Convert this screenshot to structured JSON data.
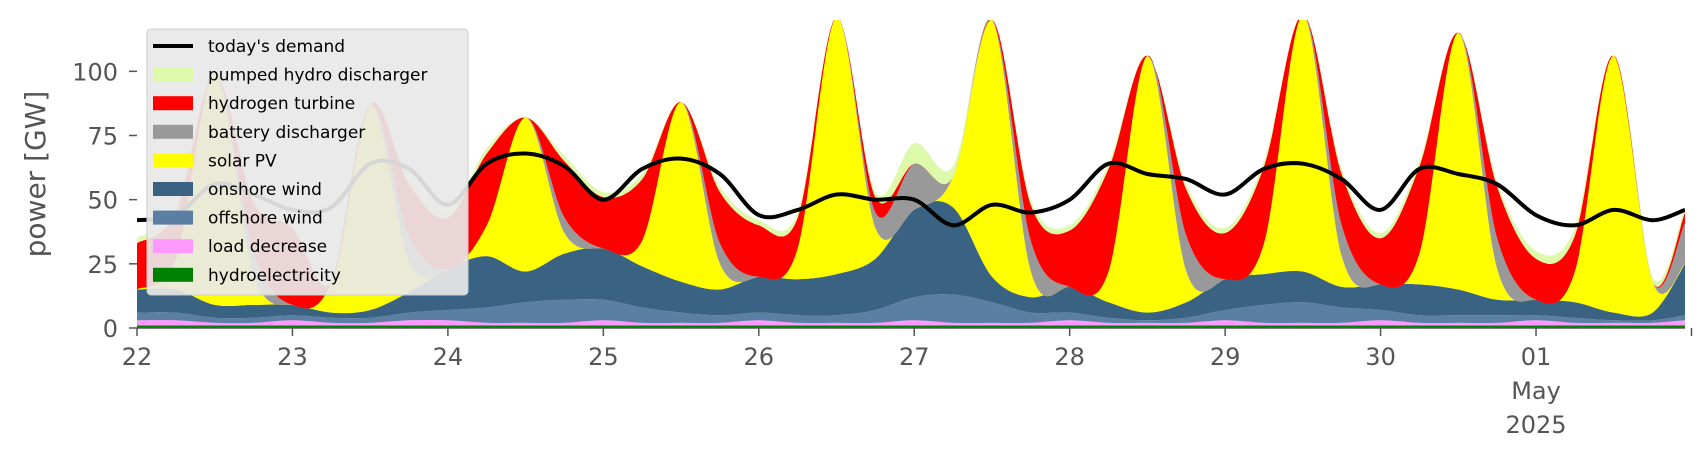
{
  "chart_data": {
    "type": "area",
    "stacked": true,
    "ylabel": "power [GW]",
    "xlabel": "",
    "ylim": [
      0,
      120
    ],
    "yticks": [
      0,
      25,
      50,
      75,
      100
    ],
    "x_tick_labels": [
      "22",
      "23",
      "24",
      "25",
      "26",
      "27",
      "28",
      "29",
      "30",
      "01",
      "May",
      "2025"
    ],
    "x_range": [
      "2025-04-22 00:00",
      "2025-05-01 23:00"
    ],
    "grid": false,
    "legend_placement": "top-left",
    "x": [
      "2025-04-22 00:00",
      "2025-04-22 06:00",
      "2025-04-22 12:00",
      "2025-04-22 18:00",
      "2025-04-23 00:00",
      "2025-04-23 06:00",
      "2025-04-23 12:00",
      "2025-04-23 18:00",
      "2025-04-24 00:00",
      "2025-04-24 06:00",
      "2025-04-24 12:00",
      "2025-04-24 18:00",
      "2025-04-25 00:00",
      "2025-04-25 06:00",
      "2025-04-25 12:00",
      "2025-04-25 18:00",
      "2025-04-26 00:00",
      "2025-04-26 06:00",
      "2025-04-26 12:00",
      "2025-04-26 18:00",
      "2025-04-27 00:00",
      "2025-04-27 06:00",
      "2025-04-27 12:00",
      "2025-04-27 18:00",
      "2025-04-28 00:00",
      "2025-04-28 06:00",
      "2025-04-28 12:00",
      "2025-04-28 18:00",
      "2025-04-29 00:00",
      "2025-04-29 06:00",
      "2025-04-29 12:00",
      "2025-04-29 18:00",
      "2025-04-30 00:00",
      "2025-04-30 06:00",
      "2025-04-30 12:00",
      "2025-04-30 18:00",
      "2025-05-01 00:00",
      "2025-05-01 06:00",
      "2025-05-01 12:00",
      "2025-05-01 18:00",
      "2025-05-01 23:00"
    ],
    "series": [
      {
        "name": "hydroelectricity",
        "color": "#008000",
        "values": [
          1,
          1,
          1,
          1,
          1,
          1,
          1,
          1,
          1,
          1,
          1,
          1,
          1,
          1,
          1,
          1,
          1,
          1,
          1,
          1,
          1,
          1,
          1,
          1,
          1,
          1,
          1,
          1,
          1,
          1,
          1,
          1,
          1,
          1,
          1,
          1,
          1,
          1,
          1,
          1,
          1
        ]
      },
      {
        "name": "load decrease",
        "color": "#ff99ff",
        "values": [
          2,
          2,
          1,
          1,
          2,
          1,
          1,
          2,
          2,
          1,
          1,
          1,
          2,
          1,
          1,
          1,
          2,
          1,
          1,
          1,
          2,
          1,
          1,
          1,
          2,
          1,
          1,
          1,
          2,
          1,
          1,
          1,
          2,
          1,
          1,
          1,
          2,
          1,
          1,
          1,
          2
        ]
      },
      {
        "name": "offshore wind",
        "color": "#5b7fa3",
        "values": [
          3,
          3,
          2,
          2,
          2,
          2,
          2,
          3,
          4,
          6,
          8,
          9,
          8,
          6,
          4,
          3,
          3,
          3,
          3,
          5,
          9,
          11,
          8,
          4,
          3,
          2,
          1,
          2,
          4,
          7,
          8,
          6,
          4,
          3,
          3,
          3,
          2,
          2,
          1,
          1,
          2
        ]
      },
      {
        "name": "onshore wind",
        "color": "#3a6282",
        "values": [
          9,
          9,
          5,
          5,
          4,
          2,
          3,
          8,
          16,
          20,
          12,
          18,
          20,
          16,
          12,
          10,
          14,
          14,
          16,
          20,
          34,
          34,
          10,
          6,
          10,
          6,
          3,
          6,
          12,
          12,
          12,
          8,
          10,
          12,
          10,
          6,
          6,
          6,
          3,
          3,
          20
        ]
      },
      {
        "name": "solar PV",
        "color": "#ffff00",
        "values": [
          0,
          12,
          90,
          12,
          0,
          12,
          80,
          12,
          0,
          12,
          60,
          8,
          0,
          10,
          70,
          10,
          0,
          12,
          100,
          12,
          0,
          12,
          100,
          10,
          0,
          12,
          100,
          12,
          0,
          12,
          100,
          12,
          0,
          12,
          100,
          12,
          0,
          12,
          100,
          12,
          0
        ]
      },
      {
        "name": "battery discharger",
        "color": "#999999",
        "values": [
          0,
          0,
          0,
          8,
          0,
          0,
          0,
          10,
          0,
          0,
          0,
          6,
          0,
          0,
          0,
          8,
          0,
          0,
          0,
          6,
          18,
          0,
          0,
          12,
          0,
          0,
          0,
          14,
          0,
          0,
          0,
          12,
          0,
          0,
          0,
          12,
          0,
          0,
          0,
          0,
          16
        ]
      },
      {
        "name": "hydrogen turbine",
        "color": "#ff0000",
        "values": [
          18,
          18,
          0,
          20,
          30,
          0,
          0,
          20,
          20,
          28,
          0,
          22,
          20,
          24,
          0,
          20,
          20,
          12,
          0,
          6,
          0,
          0,
          0,
          14,
          22,
          40,
          0,
          18,
          18,
          30,
          0,
          20,
          18,
          34,
          0,
          20,
          16,
          14,
          0,
          0,
          4
        ]
      },
      {
        "name": "pumped hydro discharger",
        "color": "#ddf9aa",
        "values": [
          2,
          2,
          0,
          2,
          2,
          0,
          0,
          2,
          2,
          2,
          0,
          2,
          2,
          2,
          0,
          2,
          2,
          2,
          0,
          2,
          8,
          4,
          0,
          2,
          2,
          2,
          0,
          2,
          2,
          2,
          0,
          2,
          2,
          2,
          0,
          2,
          3,
          3,
          0,
          2,
          2
        ]
      }
    ],
    "demand": {
      "name": "today's demand",
      "color": "#000000",
      "values": [
        42,
        44,
        56,
        52,
        46,
        47,
        64,
        62,
        48,
        64,
        68,
        63,
        50,
        62,
        66,
        60,
        44,
        46,
        52,
        50,
        50,
        40,
        48,
        45,
        50,
        64,
        60,
        58,
        52,
        62,
        64,
        58,
        46,
        62,
        60,
        56,
        44,
        40,
        46,
        42,
        46
      ]
    }
  }
}
